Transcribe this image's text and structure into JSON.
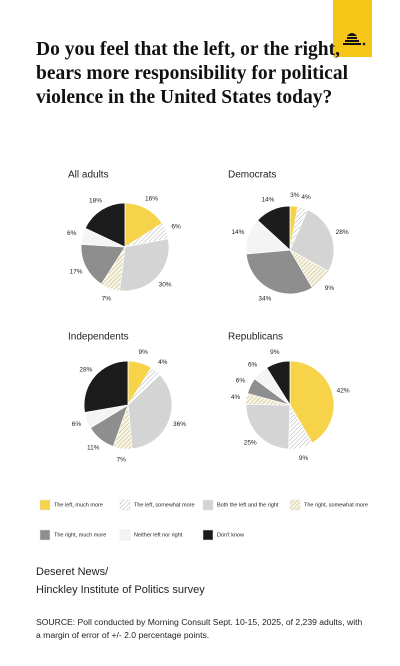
{
  "title": "Do you feel that the left, or the right, bears more responsibility for political violence in the United States today?",
  "chart_data": [
    {
      "type": "pie",
      "title": "All adults",
      "categories": [
        "The left, much more",
        "The left, somewhat more",
        "Both the left and the right",
        "The right, somewhat more",
        "The right, much more",
        "Neither left nor right",
        "Don't know"
      ],
      "values": [
        16,
        6,
        30,
        7,
        17,
        6,
        18
      ],
      "value_labels": [
        "16%",
        "6%",
        "30%",
        "7%",
        "17%",
        "6%",
        "18%"
      ],
      "colors": [
        "#f6d349",
        "#ffffff",
        "#d4d4d4",
        "#fbf6dc",
        "#8e8e8e",
        "#f4f4f4",
        "#1c1c1c"
      ],
      "hatch": [
        false,
        true,
        false,
        true,
        false,
        false,
        false
      ]
    },
    {
      "type": "pie",
      "title": "Democrats",
      "categories": [
        "The left, much more",
        "The left, somewhat more",
        "Both the left and the right",
        "The right, somewhat more",
        "The right, much more",
        "Neither left nor right",
        "Don't know"
      ],
      "values": [
        3,
        4,
        28,
        9,
        34,
        14,
        14
      ],
      "value_labels": [
        "3%",
        "4%",
        "28%",
        "9%",
        "34%",
        "14%",
        "14%"
      ],
      "colors": [
        "#f6d349",
        "#ffffff",
        "#d4d4d4",
        "#fbf6dc",
        "#8e8e8e",
        "#f4f4f4",
        "#1c1c1c"
      ],
      "hatch": [
        false,
        true,
        false,
        true,
        false,
        false,
        false
      ]
    },
    {
      "type": "pie",
      "title": "Independents",
      "categories": [
        "The left, much more",
        "The left, somewhat more",
        "Both the left and the right",
        "The right, somewhat more",
        "The right, much more",
        "Neither left nor right",
        "Don't know"
      ],
      "values": [
        9,
        4,
        36,
        7,
        11,
        6,
        28
      ],
      "value_labels": [
        "9%",
        "4%",
        "36%",
        "7%",
        "11%",
        "6%",
        "28%"
      ],
      "colors": [
        "#f6d349",
        "#ffffff",
        "#d4d4d4",
        "#fbf6dc",
        "#8e8e8e",
        "#f4f4f4",
        "#1c1c1c"
      ],
      "hatch": [
        false,
        true,
        false,
        true,
        false,
        false,
        false
      ]
    },
    {
      "type": "pie",
      "title": "Republicans",
      "categories": [
        "The left, much more",
        "The left, somewhat more",
        "Both the left and the right",
        "The right, somewhat more",
        "The right, much more",
        "Neither left nor right",
        "Don't know"
      ],
      "values": [
        42,
        9,
        25,
        4,
        6,
        6,
        9
      ],
      "value_labels": [
        "42%",
        "9%",
        "25%",
        "4%",
        "6%",
        "6%",
        "9%"
      ],
      "colors": [
        "#f6d349",
        "#ffffff",
        "#d4d4d4",
        "#fbf6dc",
        "#8e8e8e",
        "#f4f4f4",
        "#1c1c1c"
      ],
      "hatch": [
        false,
        true,
        false,
        true,
        false,
        false,
        false
      ]
    }
  ],
  "credit": [
    "Deseret News/",
    "Hinckley Institute of Politics survey"
  ],
  "source": "SOURCE: Poll conducted by Morning Consult Sept. 10-15, 2025, of 2,239 adults, with a margin of error of +/- 2.0 percentage points."
}
